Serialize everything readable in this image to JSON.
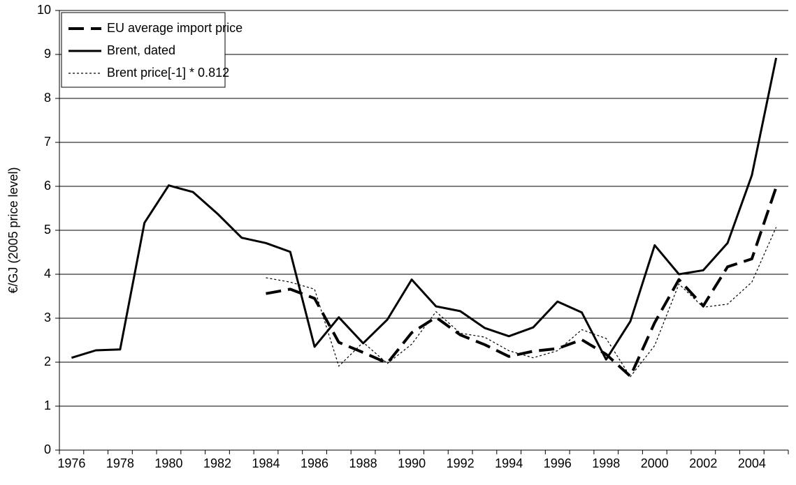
{
  "chart_data": {
    "type": "line",
    "ylabel": "€/GJ (2005 price level)",
    "categories": [
      "1976",
      null,
      "1978",
      null,
      "1980",
      null,
      "1982",
      null,
      "1984",
      null,
      "1986",
      null,
      "1988",
      null,
      "1990",
      null,
      "1992",
      null,
      "1994",
      null,
      "1996",
      null,
      "1998",
      null,
      "2000",
      null,
      "2002",
      null,
      "2004",
      null
    ],
    "series": [
      {
        "name": "EU average import price",
        "color": "#000000",
        "dash": "dashed",
        "values": [
          null,
          null,
          null,
          null,
          null,
          null,
          null,
          null,
          3.56,
          3.66,
          3.45,
          2.45,
          2.22,
          1.98,
          2.67,
          3.02,
          2.62,
          2.4,
          2.13,
          2.25,
          2.31,
          2.51,
          2.18,
          1.68,
          2.9,
          3.88,
          3.28,
          4.17,
          4.35,
          5.98
        ]
      },
      {
        "name": "Brent, dated",
        "color": "#000000",
        "dash": "solid",
        "values": [
          2.1,
          2.27,
          2.29,
          5.17,
          6.02,
          5.87,
          5.38,
          4.83,
          4.71,
          4.51,
          2.35,
          3.02,
          2.43,
          2.97,
          3.88,
          3.27,
          3.16,
          2.78,
          2.59,
          2.79,
          3.38,
          3.13,
          2.06,
          2.93,
          4.66,
          4.0,
          4.09,
          4.71,
          6.25,
          8.92
        ]
      },
      {
        "name": "Brent price[-1] * 0.812",
        "color": "#000000",
        "dash": "dotted",
        "values": [
          null,
          null,
          null,
          null,
          null,
          null,
          null,
          null,
          3.92,
          3.82,
          3.66,
          1.91,
          2.45,
          1.97,
          2.41,
          3.15,
          2.66,
          2.57,
          2.26,
          2.1,
          2.26,
          2.74,
          2.54,
          1.67,
          2.38,
          3.78,
          3.25,
          3.32,
          3.82,
          5.07
        ]
      }
    ],
    "ylim": [
      0,
      10
    ],
    "yticks": [
      0,
      1,
      2,
      3,
      4,
      5,
      6,
      7,
      8,
      9,
      10
    ],
    "grid": true,
    "legend": "top-left"
  }
}
